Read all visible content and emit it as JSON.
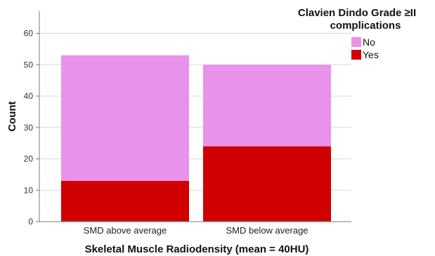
{
  "chart_data": {
    "type": "bar",
    "stacked": true,
    "categories": [
      "SMD above average",
      "SMD below average"
    ],
    "series": [
      {
        "name": "Yes",
        "values": [
          13,
          24
        ],
        "color": "#d10000"
      },
      {
        "name": "No",
        "values": [
          40,
          26
        ],
        "color": "#e992e9"
      }
    ],
    "title": "",
    "xlabel": "Skeletal Muscle Radiodensity (mean = 40HU)",
    "ylabel": "Count",
    "ylim": [
      0,
      65
    ],
    "yticks": [
      0,
      10,
      20,
      30,
      40,
      50,
      60
    ],
    "grid": true,
    "legend": {
      "title_lines": [
        "Clavien Dindo Grade ≥II",
        "complications"
      ],
      "placement": "top-right",
      "items": [
        {
          "label": "No",
          "color": "#e992e9"
        },
        {
          "label": "Yes",
          "color": "#d10000"
        }
      ]
    }
  }
}
